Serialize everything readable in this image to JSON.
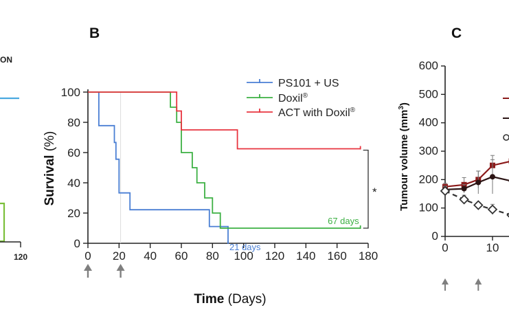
{
  "panels": {
    "a": {
      "header_fragment": "ON",
      "tick_label": "120",
      "color_blue": "#4aa9e0",
      "color_green": "#7bbf3a"
    },
    "b": {
      "letter": "B"
    },
    "c": {
      "letter": "C"
    }
  },
  "chart_data": [
    {
      "panel": "B",
      "type": "line",
      "step": true,
      "xlabel_bold": "Time",
      "xlabel_rest": " (Days)",
      "ylabel_bold": "Survival",
      "ylabel_rest": " (%)",
      "xlim": [
        0,
        180
      ],
      "ylim": [
        0,
        100
      ],
      "xticks": [
        0,
        20,
        40,
        60,
        80,
        100,
        120,
        140,
        160,
        180
      ],
      "yticks": [
        0,
        20,
        40,
        60,
        80,
        100
      ],
      "treatment_arrows_x": [
        0,
        21
      ],
      "series": [
        {
          "name": "PS101 + US",
          "color": "#4a7fd4",
          "x": [
            0,
            7,
            7,
            17,
            17,
            18,
            18,
            20,
            20,
            27,
            27,
            78,
            78,
            90,
            90
          ],
          "y": [
            100,
            100,
            77.8,
            77.8,
            66.7,
            66.7,
            55.6,
            55.6,
            33.3,
            33.3,
            22.2,
            22.2,
            11.1,
            11.1,
            0
          ],
          "annotation": "21 days"
        },
        {
          "name": "Doxil®",
          "name_base": "Doxil",
          "color": "#3cb043",
          "x": [
            0,
            53,
            53,
            57,
            57,
            60,
            60,
            67,
            67,
            70,
            70,
            75,
            75,
            80,
            80,
            85,
            85,
            97,
            97,
            175
          ],
          "y": [
            100,
            100,
            90,
            90,
            80,
            80,
            60,
            60,
            50,
            50,
            40,
            40,
            30,
            30,
            20,
            20,
            10,
            10,
            10,
            10
          ],
          "annotation": "67 days"
        },
        {
          "name": "ACT with Doxil®",
          "name_base": "ACT with Doxil",
          "color": "#e8343f",
          "x": [
            0,
            57,
            57,
            60,
            60,
            96,
            96,
            175
          ],
          "y": [
            100,
            100,
            87.5,
            87.5,
            75,
            75,
            62.5,
            62.5
          ]
        }
      ],
      "significance": "*"
    },
    {
      "panel": "C",
      "type": "line",
      "ylabel": "Tumour volume (mm",
      "ylabel_sup": "3",
      "ylabel_close": ")",
      "ylim": [
        0,
        600
      ],
      "yticks": [
        0,
        100,
        200,
        300,
        400,
        500,
        600
      ],
      "xticks": [
        0,
        10
      ],
      "treatment_arrows_x": [
        0,
        7
      ],
      "series": [
        {
          "color": "#8b1a1a",
          "marker": "square",
          "x": [
            0,
            4,
            7,
            10,
            14
          ],
          "y": [
            175,
            182,
            200,
            250,
            265
          ],
          "err": [
            12,
            25,
            30,
            35,
            30
          ]
        },
        {
          "color": "#2b1414",
          "marker": "circle",
          "x": [
            0,
            4,
            7,
            10,
            14
          ],
          "y": [
            165,
            168,
            190,
            210,
            195
          ],
          "err": [
            12,
            15,
            40,
            60,
            30
          ]
        },
        {
          "color": "#333333",
          "marker": "diamond-open",
          "dashed": true,
          "x": [
            0,
            4,
            7,
            10,
            14
          ],
          "y": [
            160,
            130,
            110,
            95,
            75
          ],
          "err": [
            15,
            15,
            10,
            18,
            10
          ]
        }
      ]
    }
  ]
}
